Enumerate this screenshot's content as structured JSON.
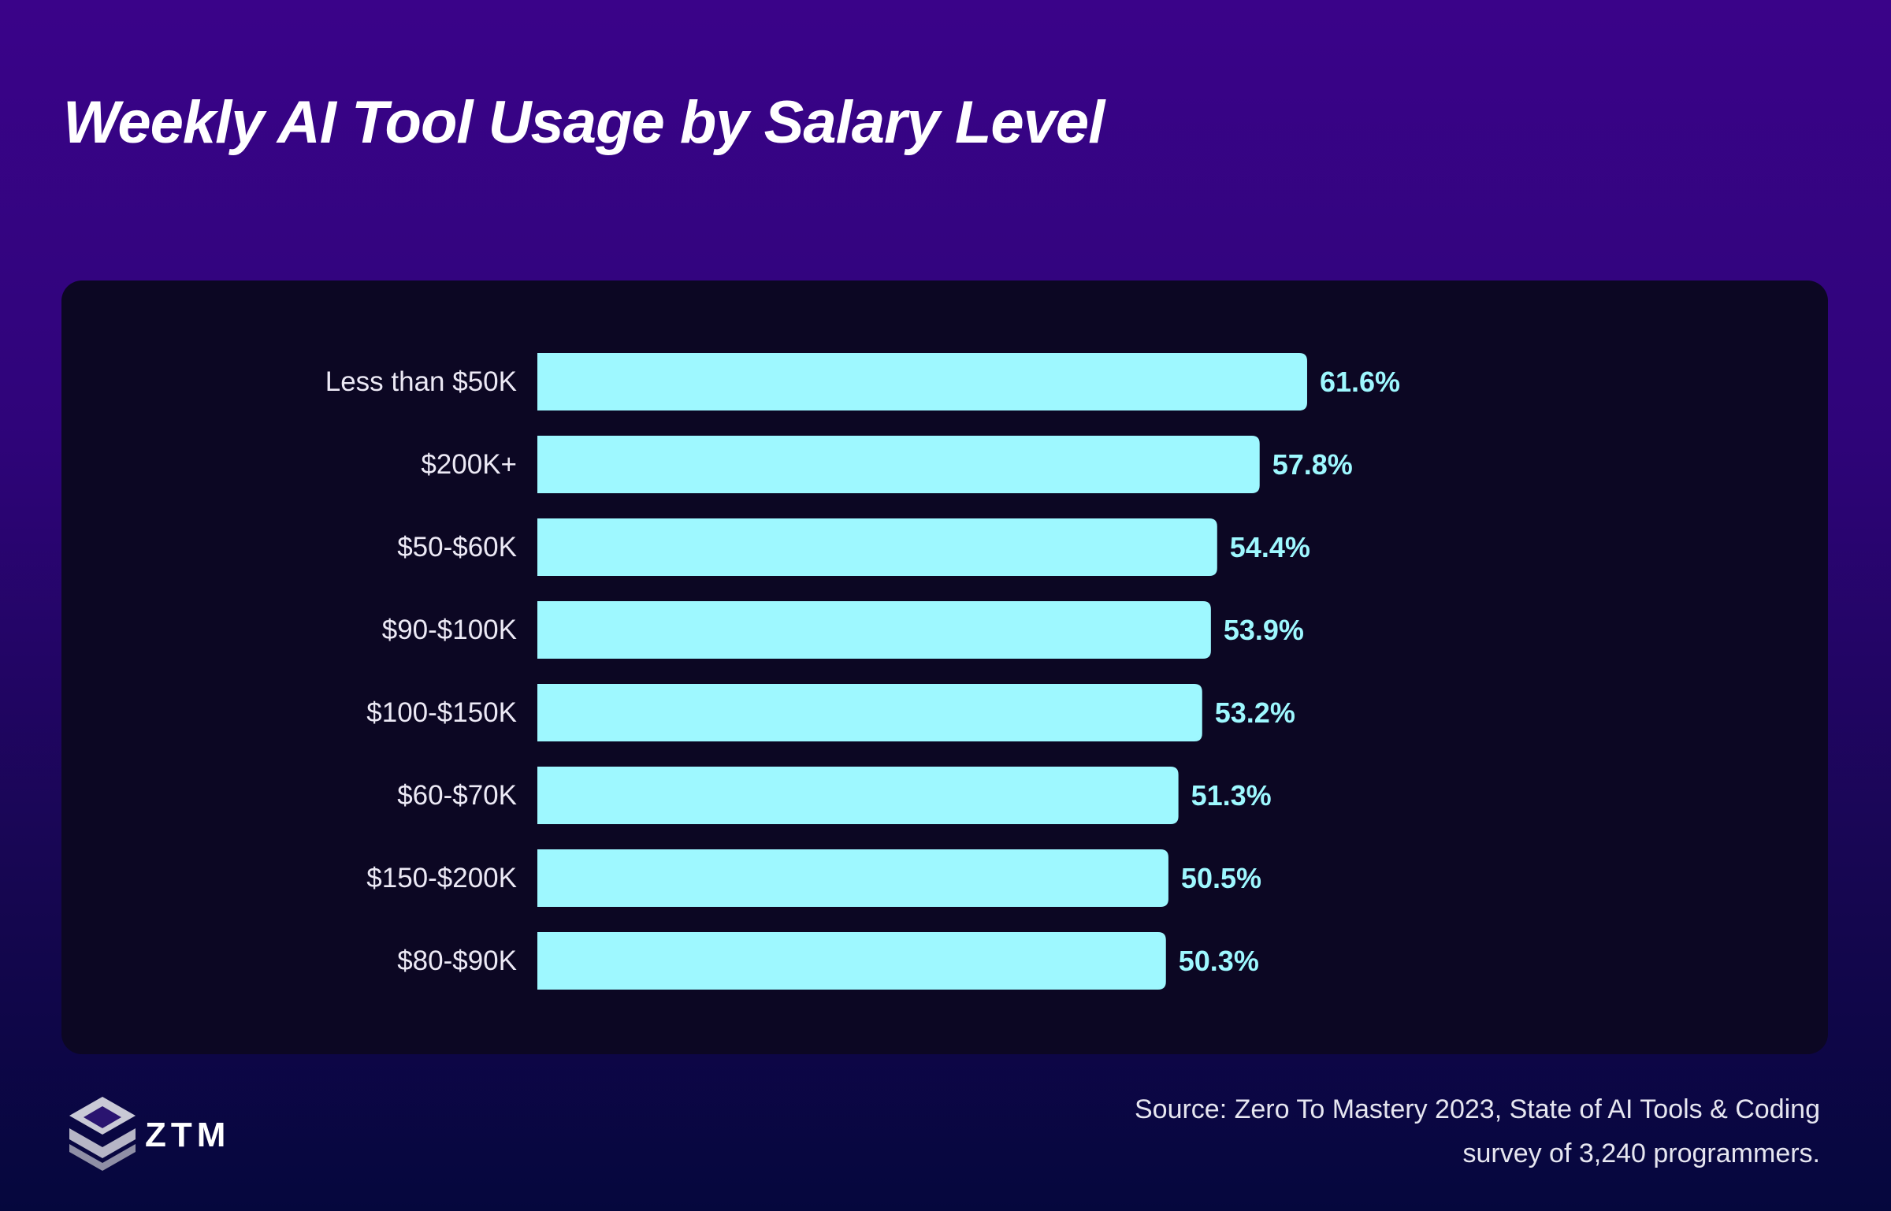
{
  "title": "Weekly AI Tool Usage by Salary Level",
  "colors": {
    "bar": "#9ef8ff",
    "value_label": "#9ef8ff",
    "panel": "#0c0723",
    "background_top": "#3a0389",
    "background_bottom": "#05073d"
  },
  "chart_data": {
    "type": "bar",
    "orientation": "horizontal",
    "title": "Weekly AI Tool Usage by Salary Level",
    "categories": [
      "Less than $50K",
      "$200K+",
      "$50-$60K",
      "$90-$100K",
      "$100-$150K",
      "$60-$70K",
      "$150-$200K",
      "$80-$90K"
    ],
    "values": [
      61.6,
      57.8,
      54.4,
      53.9,
      53.2,
      51.3,
      50.5,
      50.3
    ],
    "value_labels": [
      "61.6%",
      "57.8%",
      "54.4%",
      "53.9%",
      "53.2%",
      "51.3%",
      "50.5%",
      "50.3%"
    ],
    "unit": "%",
    "xlabel": "",
    "ylabel": "",
    "xlim": [
      0,
      100
    ],
    "grid": false,
    "legend": "none"
  },
  "logo": {
    "icon": "ztm-cube-icon",
    "text": "ZTM"
  },
  "source": {
    "line1": "Source: Zero To Mastery 2023, State of AI Tools & Coding",
    "line2": "survey of 3,240 programmers."
  }
}
